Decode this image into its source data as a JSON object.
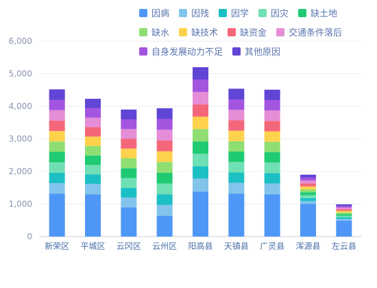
{
  "chart_data": {
    "type": "bar",
    "stacked": true,
    "categories": [
      "新荣区",
      "平城区",
      "云冈区",
      "云州区",
      "阳高县",
      "天镇县",
      "广灵县",
      "浑源县",
      "左云县"
    ],
    "ylim": [
      0,
      6000
    ],
    "yticks": [
      "0",
      "1,000",
      "2,000",
      "3,000",
      "4,000",
      "5,000",
      "6,000"
    ],
    "grid": true,
    "legend_position": "top-right",
    "series": [
      {
        "name": "因病",
        "color": "#4e97f6",
        "values": [
          1320,
          1300,
          900,
          640,
          1380,
          1320,
          1300,
          1000,
          490
        ]
      },
      {
        "name": "因残",
        "color": "#82c4ec",
        "values": [
          320,
          320,
          300,
          330,
          400,
          330,
          330,
          90,
          50
        ]
      },
      {
        "name": "因学",
        "color": "#1cc0c4",
        "values": [
          320,
          290,
          300,
          330,
          380,
          320,
          320,
          90,
          50
        ]
      },
      {
        "name": "因灾",
        "color": "#6fe0b4",
        "values": [
          320,
          290,
          300,
          330,
          380,
          320,
          320,
          90,
          50
        ]
      },
      {
        "name": "缺土地",
        "color": "#1fca73",
        "values": [
          320,
          290,
          300,
          330,
          380,
          320,
          320,
          90,
          50
        ]
      },
      {
        "name": "缺水",
        "color": "#8fde72",
        "values": [
          320,
          290,
          300,
          330,
          380,
          320,
          320,
          90,
          50
        ]
      },
      {
        "name": "缺技术",
        "color": "#ffd24d",
        "values": [
          320,
          290,
          300,
          330,
          380,
          320,
          320,
          90,
          50
        ]
      },
      {
        "name": "缺资金",
        "color": "#f4677a",
        "values": [
          320,
          290,
          300,
          330,
          380,
          320,
          320,
          90,
          50
        ]
      },
      {
        "name": "交通条件落后",
        "color": "#e58dd6",
        "values": [
          320,
          290,
          300,
          330,
          380,
          320,
          320,
          90,
          50
        ]
      },
      {
        "name": "自身发展动力不足",
        "color": "#a455e0",
        "values": [
          320,
          290,
          300,
          330,
          380,
          320,
          320,
          90,
          50
        ]
      },
      {
        "name": "其他原因",
        "color": "#6045d6",
        "values": [
          320,
          290,
          300,
          330,
          380,
          330,
          320,
          90,
          50
        ]
      }
    ]
  }
}
